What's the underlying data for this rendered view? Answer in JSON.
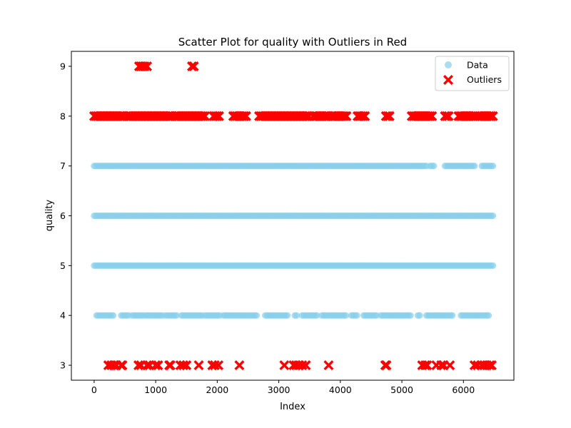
{
  "chart_data": {
    "type": "scatter",
    "title": "Scatter Plot for quality with Outliers in Red",
    "xlabel": "Index",
    "ylabel": "quality",
    "xlim": [
      -370,
      6820
    ],
    "ylim": [
      2.7,
      9.3
    ],
    "x_ticks": [
      0,
      1000,
      2000,
      3000,
      4000,
      5000,
      6000
    ],
    "y_ticks": [
      3,
      4,
      5,
      6,
      7,
      8,
      9
    ],
    "grid": false,
    "legend_placement": "top-right",
    "series": [
      {
        "name": "Data",
        "color": "#87ceeb",
        "marker": "circle",
        "points_by_y": [
          {
            "y": 4,
            "x_ranges": [
              [
                40,
                320
              ],
              [
                440,
                560
              ],
              [
                620,
                800
              ],
              [
                840,
                1120
              ],
              [
                1160,
                1360
              ],
              [
                1420,
                1760
              ],
              [
                1800,
                2040
              ],
              [
                2100,
                2640
              ],
              [
                2780,
                3160
              ],
              [
                3260,
                3300
              ],
              [
                3380,
                3620
              ],
              [
                3700,
                4100
              ],
              [
                4180,
                4280
              ],
              [
                4380,
                4600
              ],
              [
                4660,
                5140
              ],
              [
                5260,
                5300
              ],
              [
                5400,
                5820
              ],
              [
                5960,
                6420
              ]
            ]
          },
          {
            "y": 5,
            "x_ranges": [
              [
                0,
                6500
              ]
            ]
          },
          {
            "y": 6,
            "x_ranges": [
              [
                0,
                6500
              ]
            ]
          },
          {
            "y": 7,
            "x_ranges": [
              [
                0,
                5400
              ],
              [
                5460,
                5520
              ],
              [
                5700,
                6200
              ],
              [
                6300,
                6500
              ]
            ]
          }
        ]
      },
      {
        "name": "Outliers",
        "color": "#ff0000",
        "marker": "x",
        "points_by_y": [
          {
            "y": 3,
            "x": [
              230,
              280,
              320,
              360,
              440,
              460,
              720,
              760,
              860,
              900,
              1000,
              1040,
              1220,
              1240,
              1400,
              1450,
              1500,
              1700,
              1920,
              1960,
              2020,
              2360,
              3090,
              3240,
              3280,
              3320,
              3380,
              3440,
              3810,
              4730,
              4750,
              5330,
              5380,
              5410,
              5560,
              5640,
              5680,
              5780,
              6180,
              6230,
              6300,
              6340,
              6380,
              6430,
              6460
            ]
          },
          {
            "y": 8,
            "x_ranges": [
              [
                0,
                500
              ],
              [
                540,
                1280
              ],
              [
                1320,
                1820
              ],
              [
                1940,
                2040
              ],
              [
                2260,
                2480
              ],
              [
                2680,
                3500
              ],
              [
                3560,
                3800
              ],
              [
                3860,
                4100
              ],
              [
                4280,
                4400
              ],
              [
                4740,
                4820
              ],
              [
                5160,
                5500
              ],
              [
                5700,
                5760
              ],
              [
                5920,
                6200
              ],
              [
                6240,
                6480
              ]
            ]
          },
          {
            "y": 9,
            "x": [
              730,
              760,
              790,
              820,
              860,
              1590,
              1620
            ]
          }
        ]
      }
    ]
  }
}
